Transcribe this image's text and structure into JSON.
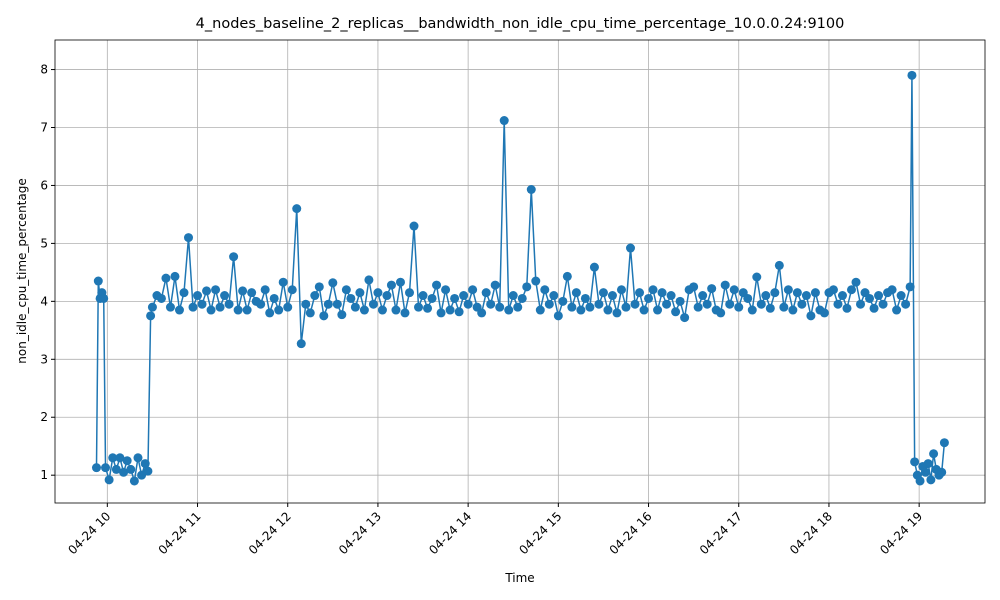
{
  "chart_data": {
    "type": "line",
    "title": "4_nodes_baseline_2_replicas__bandwidth_non_idle_cpu_time_percentage_10.0.0.24:9100",
    "xlabel": "Time",
    "ylabel": "non_idle_cpu_time_percentage",
    "color": "#1f77b4",
    "grid": true,
    "xlim": [
      9.42,
      19.73
    ],
    "ylim": [
      0.52,
      8.51
    ],
    "xticks": [
      {
        "value": 10,
        "label": "04-24 10"
      },
      {
        "value": 11,
        "label": "04-24 11"
      },
      {
        "value": 12,
        "label": "04-24 12"
      },
      {
        "value": 13,
        "label": "04-24 13"
      },
      {
        "value": 14,
        "label": "04-24 14"
      },
      {
        "value": 15,
        "label": "04-24 15"
      },
      {
        "value": 16,
        "label": "04-24 16"
      },
      {
        "value": 17,
        "label": "04-24 17"
      },
      {
        "value": 18,
        "label": "04-24 18"
      },
      {
        "value": 19,
        "label": "04-24 19"
      }
    ],
    "yticks": [
      1,
      2,
      3,
      4,
      5,
      6,
      7,
      8
    ],
    "x": [
      9.88,
      9.9,
      9.92,
      9.94,
      9.96,
      9.98,
      10.02,
      10.06,
      10.1,
      10.14,
      10.18,
      10.22,
      10.26,
      10.3,
      10.34,
      10.38,
      10.42,
      10.45,
      10.48,
      10.5,
      10.55,
      10.6,
      10.65,
      10.7,
      10.75,
      10.8,
      10.85,
      10.9,
      10.95,
      11,
      11.05,
      11.1,
      11.15,
      11.2,
      11.25,
      11.3,
      11.35,
      11.4,
      11.45,
      11.5,
      11.55,
      11.6,
      11.65,
      11.7,
      11.75,
      11.8,
      11.85,
      11.9,
      11.95,
      12,
      12.05,
      12.1,
      12.15,
      12.2,
      12.25,
      12.3,
      12.35,
      12.4,
      12.45,
      12.5,
      12.55,
      12.6,
      12.65,
      12.7,
      12.75,
      12.8,
      12.85,
      12.9,
      12.95,
      13,
      13.05,
      13.1,
      13.15,
      13.2,
      13.25,
      13.3,
      13.35,
      13.4,
      13.45,
      13.5,
      13.55,
      13.6,
      13.65,
      13.7,
      13.75,
      13.8,
      13.85,
      13.9,
      13.95,
      14,
      14.05,
      14.1,
      14.15,
      14.2,
      14.25,
      14.3,
      14.35,
      14.4,
      14.45,
      14.5,
      14.55,
      14.6,
      14.65,
      14.7,
      14.75,
      14.8,
      14.85,
      14.9,
      14.95,
      15,
      15.05,
      15.1,
      15.15,
      15.2,
      15.25,
      15.3,
      15.35,
      15.4,
      15.45,
      15.5,
      15.55,
      15.6,
      15.65,
      15.7,
      15.75,
      15.8,
      15.85,
      15.9,
      15.95,
      16,
      16.05,
      16.1,
      16.15,
      16.2,
      16.25,
      16.3,
      16.35,
      16.4,
      16.45,
      16.5,
      16.55,
      16.6,
      16.65,
      16.7,
      16.75,
      16.8,
      16.85,
      16.9,
      16.95,
      17,
      17.05,
      17.1,
      17.15,
      17.2,
      17.25,
      17.3,
      17.35,
      17.4,
      17.45,
      17.5,
      17.55,
      17.6,
      17.65,
      17.7,
      17.75,
      17.8,
      17.85,
      17.9,
      17.95,
      18,
      18.05,
      18.1,
      18.15,
      18.2,
      18.25,
      18.3,
      18.35,
      18.4,
      18.45,
      18.5,
      18.55,
      18.6,
      18.65,
      18.7,
      18.75,
      18.8,
      18.85,
      18.9,
      18.92,
      18.95,
      18.98,
      19.01,
      19.04,
      19.07,
      19.1,
      19.13,
      19.16,
      19.19,
      19.22,
      19.25,
      19.28
    ],
    "values": [
      1.13,
      4.35,
      4.05,
      4.15,
      4.05,
      1.13,
      0.92,
      1.3,
      1.1,
      1.3,
      1.05,
      1.25,
      1.1,
      0.9,
      1.3,
      1.0,
      1.2,
      1.07,
      3.75,
      3.9,
      4.1,
      4.05,
      4.4,
      3.9,
      4.43,
      3.85,
      4.15,
      5.1,
      3.9,
      4.1,
      3.95,
      4.18,
      3.85,
      4.2,
      3.9,
      4.1,
      3.95,
      4.77,
      3.85,
      4.18,
      3.85,
      4.15,
      4.0,
      3.95,
      4.2,
      3.8,
      4.05,
      3.85,
      4.33,
      3.9,
      4.2,
      5.6,
      3.27,
      3.95,
      3.8,
      4.1,
      4.25,
      3.75,
      3.95,
      4.32,
      3.95,
      3.77,
      4.2,
      4.05,
      3.9,
      4.15,
      3.85,
      4.37,
      3.95,
      4.15,
      3.85,
      4.1,
      4.28,
      3.85,
      4.33,
      3.8,
      4.15,
      5.3,
      3.9,
      4.1,
      3.88,
      4.05,
      4.28,
      3.8,
      4.2,
      3.85,
      4.05,
      3.82,
      4.1,
      3.95,
      4.2,
      3.9,
      3.8,
      4.15,
      3.95,
      4.28,
      3.9,
      7.12,
      3.85,
      4.1,
      3.9,
      4.05,
      4.25,
      5.93,
      4.35,
      3.85,
      4.2,
      3.95,
      4.1,
      3.75,
      4.0,
      4.43,
      3.9,
      4.15,
      3.85,
      4.05,
      3.9,
      4.59,
      3.95,
      4.15,
      3.85,
      4.1,
      3.8,
      4.2,
      3.9,
      4.92,
      3.95,
      4.15,
      3.85,
      4.05,
      4.2,
      3.85,
      4.15,
      3.95,
      4.1,
      3.82,
      4.0,
      3.72,
      4.2,
      4.25,
      3.9,
      4.1,
      3.95,
      4.22,
      3.85,
      3.8,
      4.28,
      3.95,
      4.2,
      3.9,
      4.15,
      4.05,
      3.85,
      4.42,
      3.95,
      4.1,
      3.88,
      4.15,
      4.62,
      3.9,
      4.2,
      3.85,
      4.15,
      3.95,
      4.1,
      3.75,
      4.15,
      3.85,
      3.8,
      4.15,
      4.2,
      3.95,
      4.1,
      3.88,
      4.2,
      4.33,
      3.95,
      4.15,
      4.05,
      3.88,
      4.1,
      3.95,
      4.15,
      4.2,
      3.85,
      4.1,
      3.95,
      4.25,
      7.9,
      1.23,
      1.0,
      0.9,
      1.15,
      1.05,
      1.2,
      0.92,
      1.37,
      1.1,
      1.0,
      1.05,
      1.56
    ]
  }
}
